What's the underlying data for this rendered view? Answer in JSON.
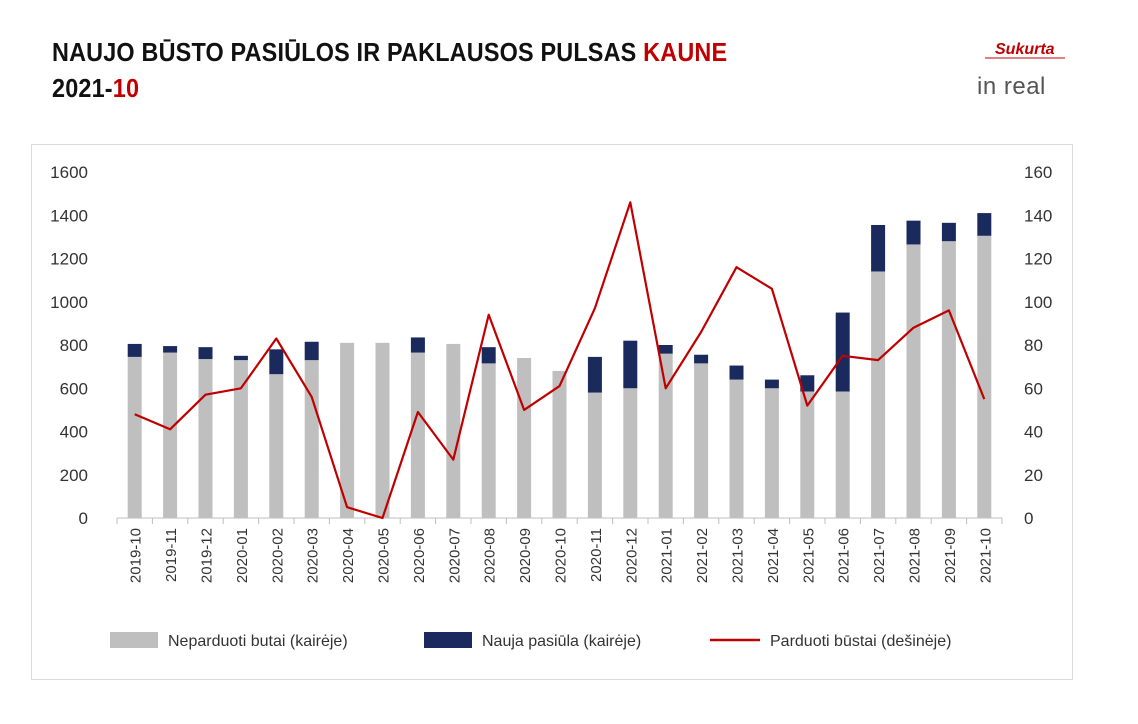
{
  "header": {
    "title_main": "NAUJO BŪSTO PASIŪLOS IR PAKLAUSOS PULSAS ",
    "title_city": "KAUNE",
    "period_year": "2021-",
    "period_month": "10"
  },
  "logo": {
    "script_text": "Sukurta",
    "brand_text": "in real"
  },
  "colors": {
    "accent": "#c00000",
    "unsold": "#bfbfbf",
    "new_offer": "#1b2a5c",
    "sold_line": "#c00000"
  },
  "chart_data": {
    "type": "bar",
    "categories": [
      "2019-10",
      "2019-11",
      "2019-12",
      "2020-01",
      "2020-02",
      "2020-03",
      "2020-04",
      "2020-05",
      "2020-06",
      "2020-07",
      "2020-08",
      "2020-09",
      "2020-10",
      "2020-11",
      "2020-12",
      "2021-01",
      "2021-02",
      "2021-03",
      "2021-04",
      "2021-05",
      "2021-06",
      "2021-07",
      "2021-08",
      "2021-09",
      "2021-10"
    ],
    "series": [
      {
        "name": "Neparduoti butai (kairėje)",
        "kind": "stacked_bar",
        "axis": "left",
        "values": [
          745,
          765,
          735,
          730,
          665,
          730,
          810,
          810,
          765,
          805,
          715,
          740,
          680,
          580,
          600,
          760,
          715,
          640,
          600,
          585,
          585,
          1140,
          1265,
          1280,
          1305
        ]
      },
      {
        "name": "Nauja pasiūla (kairėje)",
        "kind": "stacked_bar",
        "axis": "left",
        "values": [
          60,
          30,
          55,
          20,
          115,
          85,
          0,
          0,
          70,
          0,
          75,
          0,
          0,
          165,
          220,
          40,
          40,
          65,
          40,
          75,
          365,
          215,
          110,
          85,
          105
        ]
      },
      {
        "name": "Parduoti būstai (dešinėje)",
        "kind": "line",
        "axis": "right",
        "values": [
          48,
          41,
          57,
          60,
          83,
          56,
          5,
          0,
          49,
          27,
          94,
          50,
          61,
          97,
          146,
          60,
          86,
          116,
          106,
          52,
          75,
          73,
          88,
          96,
          55
        ]
      }
    ],
    "left_axis": {
      "ylim": [
        0,
        1600
      ],
      "ticks": [
        0,
        200,
        400,
        600,
        800,
        1000,
        1200,
        1400,
        1600
      ]
    },
    "right_axis": {
      "ylim": [
        0,
        160
      ],
      "ticks": [
        0,
        20,
        40,
        60,
        80,
        100,
        120,
        140,
        160
      ]
    },
    "grid": false,
    "legend": "bottom"
  }
}
